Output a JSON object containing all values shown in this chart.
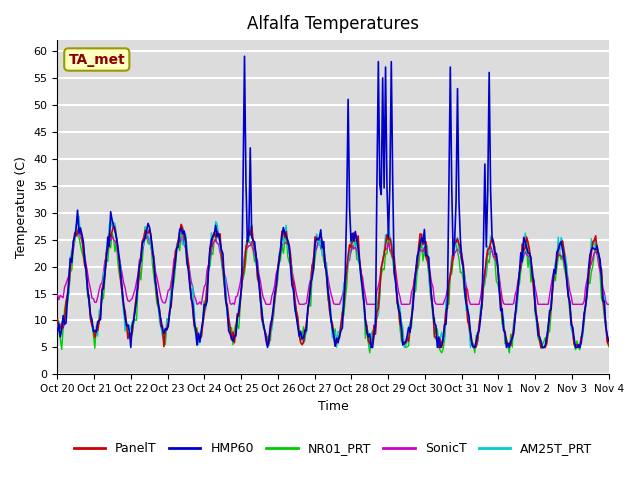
{
  "title": "Alfalfa Temperatures",
  "xlabel": "Time",
  "ylabel": "Temperature (C)",
  "ylim": [
    0,
    62
  ],
  "yticks": [
    0,
    5,
    10,
    15,
    20,
    25,
    30,
    35,
    40,
    45,
    50,
    55,
    60
  ],
  "x_labels": [
    "Oct 20",
    "Oct 21",
    "Oct 22",
    "Oct 23",
    "Oct 24",
    "Oct 25",
    "Oct 26",
    "Oct 27",
    "Oct 28",
    "Oct 29",
    "Oct 30",
    "Oct 31",
    "Nov 1",
    "Nov 2",
    "Nov 3",
    "Nov 4"
  ],
  "annotation_text": "TA_met",
  "annotation_color": "#8B0000",
  "annotation_bg": "#FFFFC0",
  "annotation_edge": "#999900",
  "bg_color": "#DCDCDC",
  "line_colors": {
    "PanelT": "#CC0000",
    "HMP60": "#0000CC",
    "NR01_PRT": "#00CC00",
    "SonicT": "#CC00CC",
    "AM25T_PRT": "#00CCCC"
  },
  "legend_labels": [
    "PanelT",
    "HMP60",
    "NR01_PRT",
    "SonicT",
    "AM25T_PRT"
  ],
  "n_days": 16,
  "pts_per_day": 24
}
